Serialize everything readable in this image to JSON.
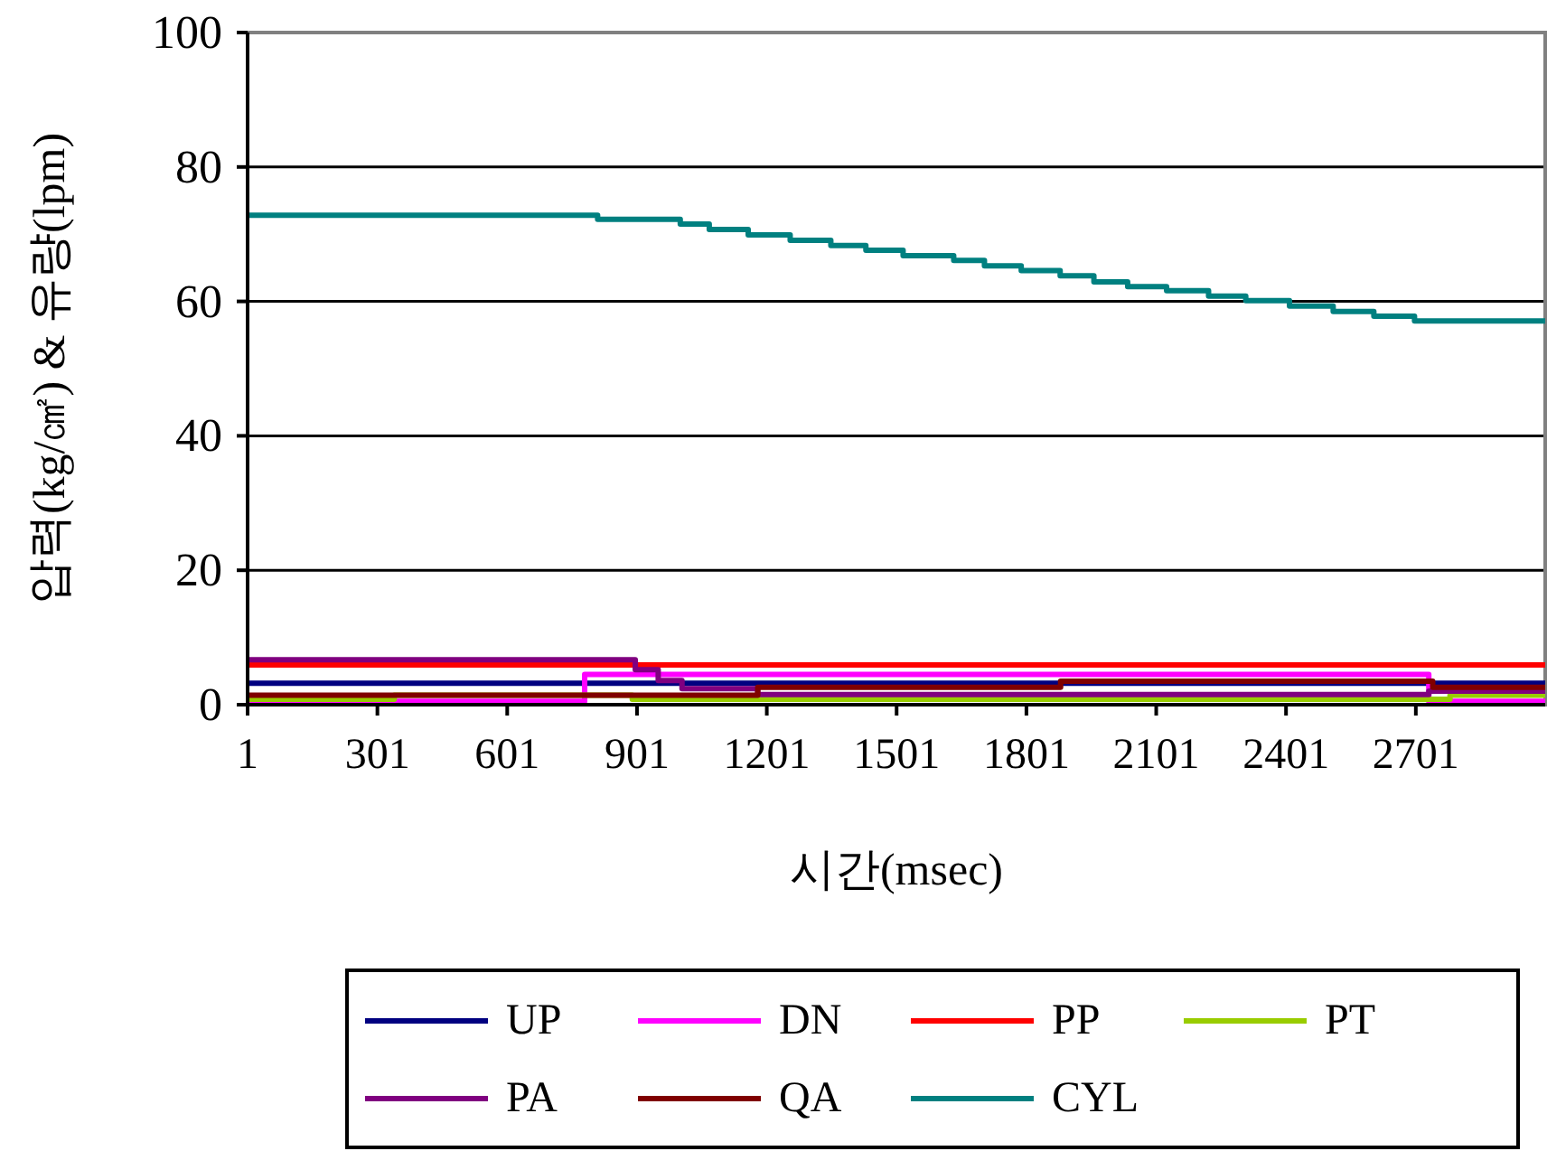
{
  "chart_data": {
    "type": "step",
    "xlabel": "시간(msec)",
    "ylabel": "압력(kg/㎠) & 유량(lpm)",
    "xlim": [
      1,
      3000
    ],
    "xticks": [
      1,
      301,
      601,
      901,
      1201,
      1501,
      1801,
      2101,
      2401,
      2701
    ],
    "ylim": [
      0,
      100
    ],
    "yticks": [
      0,
      20,
      40,
      60,
      80,
      100
    ],
    "grid": "y",
    "legend": "bottom",
    "series": [
      {
        "name": "UP",
        "color": "#000080",
        "x": [
          1,
          900,
          3000
        ],
        "values": [
          3.2,
          3.2,
          3.2
        ]
      },
      {
        "name": "DN",
        "color": "#ff00ff",
        "x": [
          1,
          780,
          2731,
          3000
        ],
        "values": [
          0.5,
          4.5,
          0.5,
          0.5
        ]
      },
      {
        "name": "PP",
        "color": "#ff0000",
        "x": [
          1,
          3000
        ],
        "values": [
          5.9,
          5.9
        ]
      },
      {
        "name": "PT",
        "color": "#99cc00",
        "x": [
          1,
          340,
          890,
          2780,
          3000
        ],
        "values": [
          0.8,
          1.4,
          0.8,
          1.4,
          1.4
        ]
      },
      {
        "name": "PA",
        "color": "#800080",
        "x": [
          1,
          897,
          950,
          1005,
          1180,
          2731,
          3000
        ],
        "values": [
          6.7,
          5.2,
          3.6,
          2.4,
          1.5,
          2.0,
          2.0
        ]
      },
      {
        "name": "QA",
        "color": "#800000",
        "x": [
          1,
          1180,
          1880,
          2740,
          3000
        ],
        "values": [
          1.4,
          2.6,
          3.5,
          2.6,
          2.6
        ]
      },
      {
        "name": "CYL",
        "color": "#008080",
        "x": [
          1,
          810,
          1001,
          1068,
          1158,
          1255,
          1349,
          1430,
          1516,
          1633,
          1704,
          1789,
          1879,
          1957,
          2035,
          2125,
          2222,
          2308,
          2409,
          2510,
          2604,
          2698,
          3000
        ],
        "values": [
          72.8,
          72.2,
          71.5,
          70.7,
          69.9,
          69.1,
          68.3,
          67.6,
          66.8,
          66.1,
          65.3,
          64.6,
          63.8,
          62.9,
          62.2,
          61.6,
          60.8,
          60.1,
          59.3,
          58.5,
          57.8,
          57.1,
          57.1
        ]
      }
    ]
  }
}
